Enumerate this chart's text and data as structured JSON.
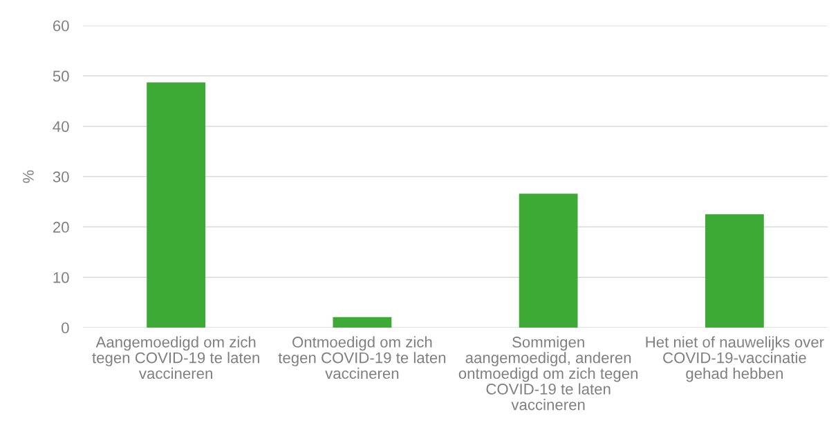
{
  "chart_data": {
    "type": "bar",
    "ylabel": "%",
    "categories": [
      "Aangemoedigd om zich\ntegen COVID-19 te laten\nvaccineren",
      "Ontmoedigd om zich\ntegen COVID-19 te laten\nvaccineren",
      "Sommigen\naangemoedigd, anderen\nontmoedigd om zich tegen\nCOVID-19 te laten\nvaccineren",
      "Het niet of nauwelijks over\nCOVID-19-vaccinatie\ngehad hebben"
    ],
    "values": [
      48.7,
      2.1,
      26.6,
      22.5
    ],
    "color": "#3daa35",
    "ylim": [
      0,
      60
    ],
    "yticks": [
      0,
      10,
      20,
      30,
      40,
      50,
      60
    ],
    "grid": "y"
  }
}
